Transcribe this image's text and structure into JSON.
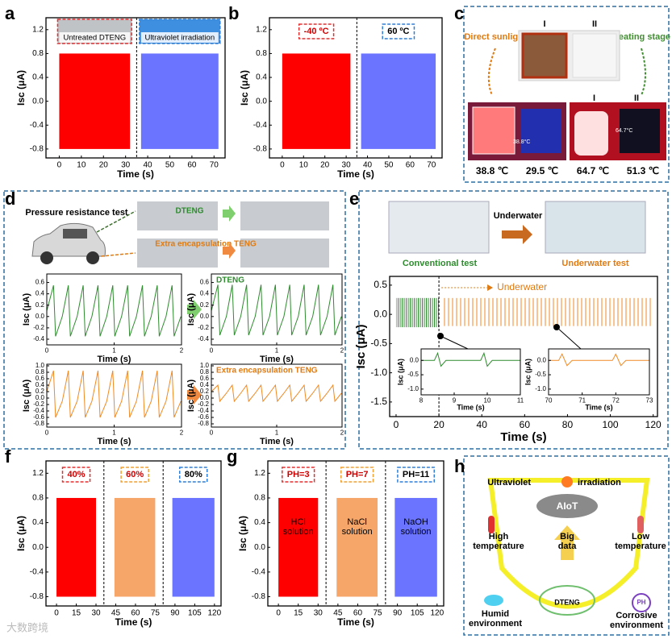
{
  "chart_data": [
    {
      "type": "signal",
      "panel": "a",
      "xlabel": "Time (s)",
      "ylabel": "Isc (μA)",
      "xlim": [
        -6,
        75
      ],
      "xticks": [
        0,
        10,
        20,
        30,
        40,
        50,
        60,
        70
      ],
      "ylim": [
        -0.95,
        1.4
      ],
      "yticks": [
        -0.8,
        -0.4,
        {
          "value": 0,
          "label": "0.0"
        },
        0.4,
        0.8,
        1.2
      ],
      "dividers": [
        35
      ],
      "series": [
        {
          "name": "Untreated DTENG",
          "color": "#ff0000",
          "border": "#e03030",
          "x": [
            0,
            32
          ],
          "values": [
            -0.8,
            0.8
          ]
        },
        {
          "name": "Ultraviolet irradiation",
          "color": "#6a74ff",
          "border": "#2f7fd6",
          "x": [
            37,
            72
          ],
          "values": [
            -0.8,
            0.8
          ]
        }
      ]
    },
    {
      "type": "signal",
      "panel": "b",
      "xlabel": "Time (s)",
      "ylabel": "Isc (μA)",
      "xlim": [
        -6,
        75
      ],
      "xticks": [
        0,
        10,
        20,
        30,
        40,
        50,
        60,
        70
      ],
      "ylim": [
        -0.95,
        1.4
      ],
      "yticks": [
        -0.8,
        -0.4,
        {
          "value": 0,
          "label": "0.0"
        },
        0.4,
        0.8,
        1.2
      ],
      "dividers": [
        35
      ],
      "series": [
        {
          "tag": "-40 ºC",
          "color": "#ff0000",
          "border": "#e03030",
          "x": [
            0,
            32
          ],
          "values": [
            -0.8,
            0.8
          ]
        },
        {
          "tag": "60 ºC",
          "color": "#6a74ff",
          "border": "#2f7fd6",
          "x": [
            37,
            72
          ],
          "values": [
            -0.8,
            0.8
          ]
        }
      ]
    },
    {
      "type": "line",
      "xlabel": "Time (s)",
      "ylabel": "Isc (μA)",
      "xlim": [
        0,
        2
      ],
      "xticks": [
        0,
        1,
        2
      ],
      "ylim": [
        -0.5,
        0.75
      ],
      "yticks": [
        -0.4,
        -0.2,
        {
          "value": 0,
          "label": "0.0"
        },
        0.2,
        0.4,
        0.6
      ],
      "series": [
        {
          "color": "#2e8b2e",
          "x": [
            0,
            0.1,
            0.13,
            0.23,
            0.32,
            0.35,
            0.45,
            0.54,
            0.57,
            0.67,
            0.76,
            0.79,
            0.89,
            0.98,
            1.01,
            1.11,
            1.2,
            1.23,
            1.33,
            1.42,
            1.45,
            1.55,
            1.64,
            1.67,
            1.77,
            1.86,
            1.89,
            1.99
          ],
          "values": [
            0.1,
            0.55,
            -0.35,
            0,
            0.55,
            -0.35,
            0,
            0.55,
            -0.35,
            0,
            0.55,
            -0.35,
            0,
            0.55,
            -0.35,
            0,
            0.55,
            -0.35,
            0,
            0.55,
            -0.35,
            0,
            0.55,
            -0.35,
            0,
            0.55,
            -0.35,
            0
          ]
        }
      ]
    },
    {
      "type": "line",
      "xlabel": "Time (s)",
      "ylabel": "Isc (μA)",
      "label": "DTENG",
      "label_color": "#2e8b2e",
      "xlim": [
        0,
        2
      ],
      "xticks": [
        0,
        1,
        2
      ],
      "ylim": [
        -0.5,
        0.75
      ],
      "yticks": [
        -0.4,
        -0.2,
        {
          "value": 0,
          "label": "0.0"
        },
        0.2,
        0.4,
        0.6
      ],
      "series": [
        {
          "color": "#2e8b2e",
          "x": [
            0,
            0.1,
            0.13,
            0.23,
            0.32,
            0.35,
            0.45,
            0.54,
            0.57,
            0.67,
            0.76,
            0.79,
            0.89,
            0.98,
            1.01,
            1.11,
            1.2,
            1.23,
            1.33,
            1.42,
            1.45,
            1.55,
            1.64,
            1.67,
            1.77,
            1.86,
            1.89,
            1.99
          ],
          "values": [
            0.1,
            0.56,
            -0.33,
            0,
            0.56,
            -0.33,
            0,
            0.56,
            -0.33,
            0,
            0.56,
            -0.33,
            0,
            0.56,
            -0.33,
            0,
            0.56,
            -0.33,
            0,
            0.56,
            -0.33,
            0,
            0.56,
            -0.33,
            0,
            0.56,
            -0.33,
            0
          ]
        }
      ]
    },
    {
      "type": "line",
      "xlabel": "Time (s)",
      "ylabel": "Isc (μA)",
      "xlim": [
        0,
        2
      ],
      "xticks": [
        0,
        1,
        2
      ],
      "ylim": [
        -0.9,
        1.05
      ],
      "yticks": [
        -0.8,
        -0.6,
        -0.4,
        -0.2,
        {
          "value": 0,
          "label": "0.0"
        },
        0.2,
        0.4,
        0.6,
        0.8,
        {
          "value": 1,
          "label": "1.0"
        }
      ],
      "series": [
        {
          "color": "#f08a24",
          "x": [
            0,
            0.1,
            0.13,
            0.23,
            0.32,
            0.35,
            0.45,
            0.54,
            0.57,
            0.67,
            0.76,
            0.79,
            0.89,
            0.98,
            1.01,
            1.11,
            1.2,
            1.23,
            1.33,
            1.42,
            1.45,
            1.55,
            1.64,
            1.67,
            1.77,
            1.86,
            1.89,
            1.99
          ],
          "values": [
            0.2,
            0.85,
            -0.6,
            -0.1,
            0.85,
            -0.6,
            -0.1,
            0.85,
            -0.6,
            -0.1,
            0.85,
            -0.6,
            -0.1,
            0.85,
            -0.6,
            -0.1,
            0.85,
            -0.6,
            -0.1,
            0.85,
            -0.6,
            -0.1,
            0.85,
            -0.6,
            -0.1,
            0.85,
            -0.6,
            -0.1
          ]
        }
      ]
    },
    {
      "type": "line",
      "xlabel": "Time (s)",
      "ylabel": "Isc (μA)",
      "label": "Extra encapsulation TENG",
      "label_color": "#e07a10",
      "xlim": [
        0,
        2
      ],
      "xticks": [
        0,
        1,
        2
      ],
      "ylim": [
        -0.9,
        1.05
      ],
      "yticks": [
        -0.8,
        -0.6,
        -0.4,
        -0.2,
        {
          "value": 0,
          "label": "0.0"
        },
        0.2,
        0.4,
        0.6,
        0.8,
        {
          "value": 1,
          "label": "1.0"
        }
      ],
      "series": [
        {
          "color": "#f08a24",
          "x": [
            0,
            0.1,
            0.13,
            0.23,
            0.32,
            0.35,
            0.45,
            0.54,
            0.57,
            0.67,
            0.76,
            0.79,
            0.89,
            0.98,
            1.01,
            1.11,
            1.2,
            1.23,
            1.33,
            1.42,
            1.45,
            1.55,
            1.64,
            1.67,
            1.77,
            1.86,
            1.89,
            1.99
          ],
          "values": [
            0.2,
            0.4,
            -0.1,
            0.15,
            0.4,
            -0.1,
            0.15,
            0.4,
            -0.1,
            0.15,
            0.4,
            -0.1,
            0.15,
            0.4,
            -0.1,
            0.15,
            0.4,
            -0.1,
            0.15,
            0.4,
            -0.1,
            0.15,
            0.4,
            -0.1,
            0.15,
            0.4,
            -0.1,
            0.15
          ]
        }
      ]
    },
    {
      "type": "signal",
      "style": "spikes",
      "xlabel": "Time (s)",
      "ylabel": "Isc (μA)",
      "annotation": "Underwater",
      "annotation_color": "#e07a10",
      "xlim": [
        -3,
        122
      ],
      "xticks": [
        0,
        20,
        40,
        60,
        80,
        100,
        120
      ],
      "ylim": [
        -1.75,
        0.65
      ],
      "yticks": [
        -1.5,
        {
          "value": -1,
          "label": "-1.0"
        },
        -0.5,
        {
          "value": 0,
          "label": "0.0"
        },
        0.5
      ],
      "dividers": [
        20
      ],
      "series": [
        {
          "color": "#2e8b2e",
          "x": [
            0,
            20
          ],
          "values": [
            -0.22,
            0.28
          ]
        },
        {
          "color": "#f08a24",
          "x": [
            21,
            120
          ],
          "values": [
            -0.2,
            0.28
          ]
        }
      ]
    },
    {
      "type": "line",
      "xlabel": "Time (s)",
      "ylabel": "Isc (μA)",
      "xlim": [
        8,
        11
      ],
      "xticks": [
        8,
        9,
        10,
        11
      ],
      "ylim": [
        -1.2,
        0.4
      ],
      "yticks": [
        {
          "value": -1,
          "label": "-1.0"
        },
        -0.5,
        {
          "value": 0,
          "label": "0.0"
        }
      ],
      "series": [
        {
          "color": "#2e8b2e",
          "x": [
            8,
            8.4,
            8.5,
            8.6,
            8.75,
            9.8,
            9.9,
            10,
            10.15,
            11
          ],
          "values": [
            0,
            0,
            0.25,
            -0.2,
            0,
            0,
            0.25,
            -0.2,
            0,
            0
          ]
        }
      ]
    },
    {
      "type": "line",
      "xlabel": "Time (s)",
      "ylabel": "Isc (μA)",
      "xlim": [
        70,
        73
      ],
      "xticks": [
        70,
        71,
        72,
        73
      ],
      "ylim": [
        -1.2,
        0.4
      ],
      "yticks": [
        {
          "value": -1,
          "label": "-1.0"
        },
        -0.5,
        {
          "value": 0,
          "label": "0.0"
        }
      ],
      "series": [
        {
          "color": "#f08a24",
          "x": [
            70,
            70.3,
            70.4,
            70.55,
            70.7,
            71.9,
            72,
            72.15,
            72.3,
            73
          ],
          "values": [
            0,
            0,
            0.22,
            -0.18,
            0,
            0,
            0.22,
            -0.18,
            0,
            0
          ]
        }
      ]
    },
    {
      "type": "signal",
      "panel": "f",
      "xlabel": "Time (s)",
      "ylabel": "Isc (μA)",
      "xlim": [
        -8,
        125
      ],
      "xticks": [
        0,
        15,
        30,
        45,
        60,
        75,
        90,
        105,
        120
      ],
      "ylim": [
        -0.95,
        1.4
      ],
      "yticks": [
        -0.8,
        -0.4,
        {
          "value": 0,
          "label": "0.0"
        },
        0.4,
        0.8,
        1.2
      ],
      "dividers": [
        36,
        81
      ],
      "series": [
        {
          "tag": "40%",
          "color": "#ff0000",
          "border": "#e03030",
          "x": [
            0,
            30
          ],
          "values": [
            -0.8,
            0.8
          ]
        },
        {
          "tag": "60%",
          "color": "#f7a66a",
          "border": "#f0a030",
          "x": [
            44,
            75
          ],
          "values": [
            -0.8,
            0.8
          ]
        },
        {
          "tag": "80%",
          "color": "#6a74ff",
          "border": "#2f7fd6",
          "x": [
            88,
            120
          ],
          "values": [
            -0.8,
            0.8
          ]
        }
      ]
    },
    {
      "type": "signal",
      "panel": "g",
      "name_inside": true,
      "xlabel": "Time (s)",
      "ylabel": "Isc (μA)",
      "xlim": [
        -8,
        125
      ],
      "xticks": [
        0,
        15,
        30,
        45,
        60,
        75,
        90,
        105,
        120
      ],
      "ylim": [
        -0.95,
        1.4
      ],
      "yticks": [
        -0.8,
        -0.4,
        {
          "value": 0,
          "label": "0.0"
        },
        0.4,
        0.8,
        1.2
      ],
      "dividers": [
        36,
        81
      ],
      "series": [
        {
          "tag": "PH=3",
          "name": "HCl solution",
          "color": "#ff0000",
          "border": "#e03030",
          "x": [
            0,
            30
          ],
          "values": [
            -0.8,
            0.8
          ]
        },
        {
          "tag": "PH=7",
          "name": "NaCl solution",
          "color": "#f7a66a",
          "border": "#f0a030",
          "x": [
            44,
            75
          ],
          "values": [
            -0.8,
            0.8
          ]
        },
        {
          "tag": "PH=11",
          "name": "NaOH solution",
          "color": "#6a74ff",
          "border": "#2f7fd6",
          "x": [
            88,
            120
          ],
          "values": [
            -0.8,
            0.8
          ]
        }
      ]
    }
  ],
  "panel_c": {
    "letter": "c",
    "left": "Direct sunlight",
    "right": "Heating stage",
    "sample_1": "I",
    "sample_2": "II",
    "spot_1": "38.8°C",
    "spot_2": "64.7°C",
    "temps": [
      "38.8 ℃",
      "29.5 ℃",
      "64.7 ℃",
      "51.3 ℃"
    ]
  },
  "panel_d": {
    "letter": "d",
    "test": "Pressure resistance test",
    "photo_1": "DTENG",
    "photo_2": "Extra encapsulation TENG"
  },
  "panel_e": {
    "letter": "e",
    "arrow": "Underwater",
    "left": "Conventional test",
    "right": "Underwater test"
  },
  "panel_h": {
    "letter": "h",
    "uv_1": "Ultraviolet",
    "uv_2": "irradiation",
    "cloud": "AIoT",
    "hot": "High temperature",
    "cold": "Low temperature",
    "data": "Big data",
    "device": "DTENG",
    "humid": "Humid environment",
    "corrosive": "Corrosive environment",
    "ph": "PH"
  },
  "watermark": "大数跨境"
}
